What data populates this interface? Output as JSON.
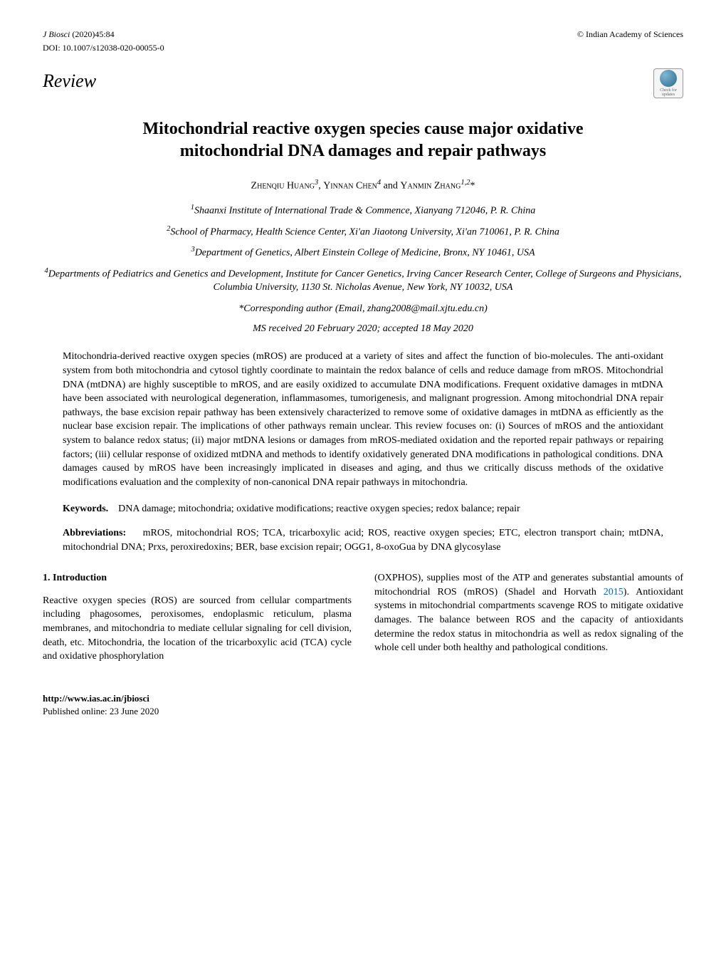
{
  "header": {
    "journal_italic": "J Biosci",
    "journal_rest": "(2020)45:84",
    "copyright": "© Indian Academy of Sciences",
    "doi": "DOI: 10.1007/s12038-020-00055-0",
    "review_label": "Review",
    "badge_text": "Check for updates"
  },
  "title_line1": "Mitochondrial reactive oxygen species cause major oxidative",
  "title_line2": "mitochondrial DNA damages and repair pathways",
  "authors": {
    "a1_first": "Zhenqiu",
    "a1_last": "Huang",
    "a1_sup": "3",
    "sep1": ",  ",
    "a2_first": "Yinnan",
    "a2_last": "Chen",
    "a2_sup": "4",
    "sep2": " and ",
    "a3_first": "Yanmin",
    "a3_last": "Zhang",
    "a3_sup": "1,2",
    "a3_star": "*"
  },
  "affiliations": {
    "aff1_sup": "1",
    "aff1": "Shaanxi Institute of International Trade & Commence, Xianyang 712046, P. R. China",
    "aff2_sup": "2",
    "aff2": "School of Pharmacy, Health Science Center, Xi'an Jiaotong University, Xi'an 710061, P. R. China",
    "aff3_sup": "3",
    "aff3": "Department of Genetics, Albert Einstein College of Medicine, Bronx, NY 10461, USA",
    "aff4_sup": "4",
    "aff4": "Departments of Pediatrics and Genetics and Development, Institute for Cancer Genetics, Irving Cancer Research Center, College of Surgeons and Physicians, Columbia University, 1130 St. Nicholas Avenue, New York, NY 10032, USA"
  },
  "corresponding": "*Corresponding author (Email, zhang2008@mail.xjtu.edu.cn)",
  "ms_dates": "MS received 20 February 2020; accepted 18 May 2020",
  "abstract": "Mitochondria-derived reactive oxygen species (mROS) are produced at a variety of sites and affect the function of bio-molecules. The anti-oxidant system from both mitochondria and cytosol tightly coordinate to maintain the redox balance of cells and reduce damage from mROS. Mitochondrial DNA (mtDNA) are highly susceptible to mROS, and are easily oxidized to accumulate DNA modifications. Frequent oxidative damages in mtDNA have been associated with neurological degeneration, inflammasomes, tumorigenesis, and malignant progression. Among mitochondrial DNA repair pathways, the base excision repair pathway has been extensively characterized to remove some of oxidative damages in mtDNA as efficiently as the nuclear base excision repair. The implications of other pathways remain unclear. This review focuses on: (i) Sources of mROS and the antioxidant system to balance redox status; (ii) major mtDNA lesions or damages from mROS-mediated oxidation and the reported repair pathways or repairing factors; (iii) cellular response of oxidized mtDNA and methods to identify oxidatively generated DNA modifications in pathological conditions. DNA damages caused by mROS have been increasingly implicated in diseases and aging, and thus we critically discuss methods of the oxidative modifications evaluation and the complexity of non-canonical DNA repair pathways in mitochondria.",
  "keywords_label": "Keywords.",
  "keywords_text": "DNA damage; mitochondria; oxidative modifications; reactive oxygen species; redox balance; repair",
  "abbrev_label": "Abbreviations:",
  "abbrev_text": "mROS, mitochondrial ROS; TCA, tricarboxylic acid; ROS, reactive oxygen species; ETC, electron transport chain; mtDNA, mitochondrial DNA; Prxs, peroxiredoxins; BER, base excision repair; OGG1, 8-oxoGua by DNA glycosylase",
  "section": {
    "heading": "1.  Introduction",
    "left_para": "Reactive oxygen species (ROS) are sourced from cellular compartments including phagosomes, peroxisomes, endoplasmic reticulum, plasma membranes, and mitochondria to mediate cellular signaling for cell division, death, etc. Mitochondria, the location of the tricarboxylic acid (TCA) cycle and oxidative phosphorylation",
    "right_para_a": "(OXPHOS), supplies most of the ATP and generates substantial amounts of mitochondrial ROS (mROS) (Shadel and Horvath ",
    "right_year": "2015",
    "right_para_b": "). Antioxidant systems in mitochondrial compartments scavenge ROS to mitigate oxidative damages. The balance between ROS and the capacity of antioxidants determine the redox status in mitochondria as well as redox signaling of the whole cell under both healthy and pathological conditions."
  },
  "footer": {
    "url": "http://www.ias.ac.in/jbiosci",
    "pub_online": "Published online: 23 June 2020"
  },
  "colors": {
    "text": "#000000",
    "link_blue": "#0563c1",
    "bg": "#ffffff"
  }
}
